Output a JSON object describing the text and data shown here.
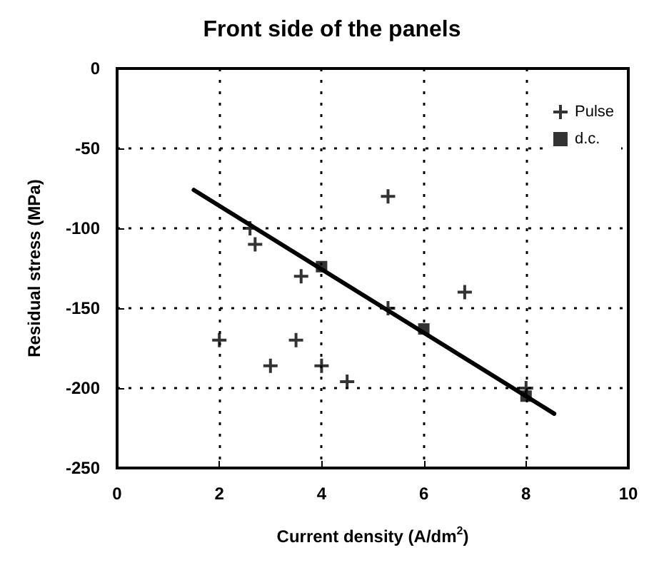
{
  "chart_data": {
    "type": "scatter",
    "title": "Front side of the panels",
    "xlabel": "Current density (A/dm$^{2}$)",
    "ylabel": "Residual stress (MPa)",
    "xlim": [
      0,
      10
    ],
    "xticks": [
      0,
      2,
      4,
      6,
      8,
      10
    ],
    "ylim": [
      -250,
      0
    ],
    "yticks": [
      -250,
      -200,
      -150,
      -100,
      -50,
      0
    ],
    "grid": true,
    "legend": "top right",
    "series": [
      {
        "name": "Pulse",
        "color": "#000000",
        "marker": "cross",
        "x": [
          2.0,
          2.6,
          2.7,
          3.0,
          3.5,
          3.6,
          4.0,
          4.5,
          5.3,
          5.3,
          6.8,
          8.0
        ],
        "values": [
          -170,
          -100,
          -110,
          -186,
          -170,
          -130,
          -186,
          -196,
          -80,
          -150,
          -140,
          -200
        ]
      },
      {
        "name": "d.c.",
        "color": "#000000",
        "marker": "square",
        "x": [
          4.0,
          6.0,
          8.0
        ],
        "values": [
          -124,
          -163,
          -205
        ]
      },
      {
        "type": "line",
        "color": "#000000",
        "marker": "none",
        "line_style": "solid",
        "x": [
          1.5,
          8.55
        ],
        "values": [
          -76,
          -216
        ]
      }
    ]
  }
}
